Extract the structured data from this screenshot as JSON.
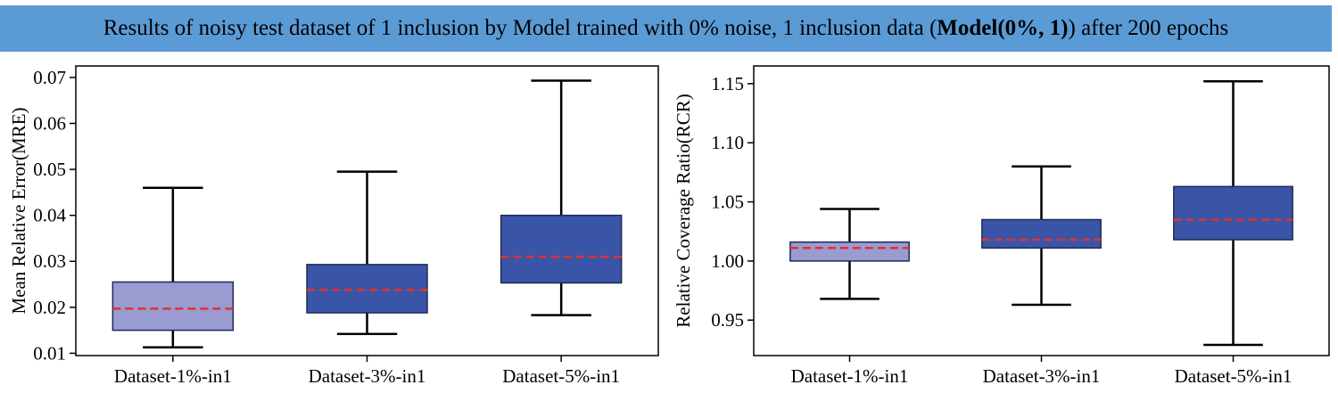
{
  "banner": {
    "prefix": "Results of noisy test dataset of 1 inclusion by Model trained with 0% noise, 1 inclusion data ( ",
    "bold": "Model(0%, 1)",
    "suffix": " ) after 200 epochs",
    "background": "#5b9bd5"
  },
  "chart_data": [
    {
      "type": "box",
      "ylabel": "Mean Relative Error(MRE)",
      "ylim": [
        0.0095,
        0.0725
      ],
      "yticks": [
        0.01,
        0.02,
        0.03,
        0.04,
        0.05,
        0.06,
        0.07
      ],
      "ytick_labels": [
        "0.01",
        "0.02",
        "0.03",
        "0.04",
        "0.05",
        "0.06",
        "0.07"
      ],
      "categories": [
        "Dataset-1%-in1",
        "Dataset-3%-in1",
        "Dataset-5%-in1"
      ],
      "boxes": [
        {
          "whisker_low": 0.0113,
          "q1": 0.015,
          "mean": 0.0197,
          "q3": 0.0255,
          "whisker_high": 0.046,
          "color": "#9a9bd1"
        },
        {
          "whisker_low": 0.0142,
          "q1": 0.0188,
          "mean": 0.0238,
          "q3": 0.0293,
          "whisker_high": 0.0495,
          "color": "#3a55a8"
        },
        {
          "whisker_low": 0.0183,
          "q1": 0.0253,
          "mean": 0.031,
          "q3": 0.04,
          "whisker_high": 0.0693,
          "color": "#3a55a8"
        }
      ],
      "mean_line_color": "#e0322d"
    },
    {
      "type": "box",
      "ylabel": "Relative Coverage Ratio(RCR)",
      "ylim": [
        0.92,
        1.165
      ],
      "yticks": [
        0.95,
        1.0,
        1.05,
        1.1,
        1.15
      ],
      "ytick_labels": [
        "0.95",
        "1.00",
        "1.05",
        "1.10",
        "1.15"
      ],
      "categories": [
        "Dataset-1%-in1",
        "Dataset-3%-in1",
        "Dataset-5%-in1"
      ],
      "boxes": [
        {
          "whisker_low": 0.968,
          "q1": 1.0,
          "mean": 1.011,
          "q3": 1.016,
          "whisker_high": 1.044,
          "color": "#9a9bd1"
        },
        {
          "whisker_low": 0.963,
          "q1": 1.011,
          "mean": 1.018,
          "q3": 1.035,
          "whisker_high": 1.08,
          "color": "#3a55a8"
        },
        {
          "whisker_low": 0.929,
          "q1": 1.018,
          "mean": 1.035,
          "q3": 1.063,
          "whisker_high": 1.152,
          "color": "#3a55a8"
        }
      ],
      "mean_line_color": "#e0322d"
    }
  ]
}
